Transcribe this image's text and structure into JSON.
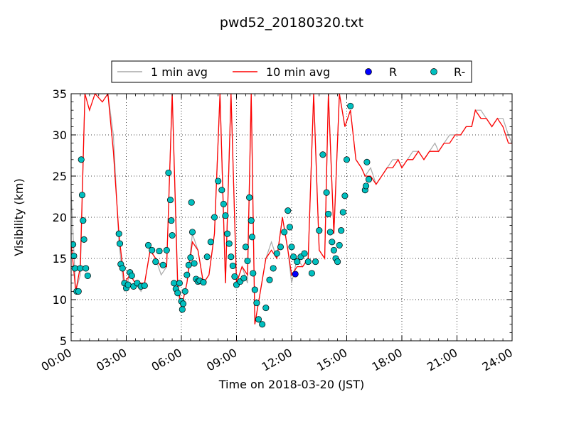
{
  "chart_data": {
    "type": "line",
    "title": "pwd52_20180320.txt",
    "xlabel": "Time on 2018-03-20 (JST)",
    "ylabel": "Visibility (km)",
    "xlim": [
      "00:00",
      "24:00"
    ],
    "ylim": [
      5,
      35
    ],
    "x_ticks": [
      "00:00",
      "03:00",
      "06:00",
      "09:00",
      "12:00",
      "15:00",
      "18:00",
      "21:00",
      "24:00"
    ],
    "y_ticks": [
      "5",
      "10",
      "15",
      "20",
      "25",
      "30",
      "35"
    ],
    "grid": true,
    "legend_position": "top-center",
    "colors": {
      "one_min": "#a9a9a9",
      "ten_min": "#ff0000",
      "R": "#0000ff",
      "R_minus": "#00bfbf"
    },
    "series": [
      {
        "name": "1 min avg",
        "style": "line",
        "color": "#a9a9a9",
        "x": [
          0.0,
          0.25,
          0.5,
          0.75,
          1.0,
          1.3,
          1.7,
          2.0,
          2.3,
          2.6,
          2.9,
          3.2,
          3.5,
          3.8,
          4.0,
          4.3,
          4.6,
          4.9,
          5.2,
          5.5,
          5.8,
          6.0,
          6.3,
          6.6,
          6.9,
          7.2,
          7.5,
          7.8,
          8.1,
          8.4,
          8.7,
          9.0,
          9.3,
          9.6,
          9.8,
          10.0,
          10.3,
          10.6,
          10.9,
          11.2,
          11.5,
          11.8,
          12.0,
          12.3,
          12.6,
          12.9,
          13.2,
          13.5,
          13.8,
          14.0,
          14.3,
          14.6,
          14.9,
          15.2,
          15.5,
          15.8,
          16.0,
          16.3,
          16.6,
          16.9,
          17.2,
          17.5,
          17.8,
          18.0,
          18.3,
          18.6,
          18.9,
          19.2,
          19.5,
          19.8,
          20.0,
          20.3,
          20.6,
          20.9,
          21.2,
          21.5,
          21.8,
          22.0,
          22.3,
          22.6,
          22.9,
          23.2,
          23.5,
          23.8,
          24.0
        ],
        "y": [
          23,
          11,
          13,
          35,
          35,
          35,
          35,
          35,
          30,
          17,
          11,
          13,
          12,
          11,
          12,
          16,
          15,
          13,
          14,
          35,
          11,
          9,
          12,
          18,
          16,
          12,
          13,
          18,
          35,
          12,
          35,
          12,
          14,
          12,
          35,
          7,
          11,
          15,
          17,
          15,
          20,
          16,
          12,
          15,
          14,
          15,
          35,
          16,
          15,
          35,
          18,
          35,
          31,
          33,
          27,
          26,
          25,
          26,
          24,
          25,
          26,
          27,
          27,
          26,
          27,
          28,
          28,
          27,
          28,
          29,
          28,
          29,
          30,
          30,
          30,
          31,
          31,
          33,
          33,
          32,
          31,
          32,
          32,
          30,
          29
        ]
      },
      {
        "name": "10 min avg",
        "style": "line",
        "color": "#ff0000",
        "x": [
          0.0,
          0.25,
          0.5,
          0.75,
          1.0,
          1.3,
          1.7,
          2.0,
          2.3,
          2.6,
          2.9,
          3.2,
          3.5,
          3.8,
          4.0,
          4.3,
          4.6,
          4.9,
          5.2,
          5.5,
          5.8,
          6.0,
          6.3,
          6.6,
          6.9,
          7.2,
          7.5,
          7.8,
          8.1,
          8.4,
          8.7,
          9.0,
          9.3,
          9.6,
          9.8,
          10.0,
          10.3,
          10.6,
          10.9,
          11.2,
          11.5,
          11.8,
          12.0,
          12.3,
          12.6,
          12.9,
          13.2,
          13.5,
          13.8,
          14.0,
          14.3,
          14.6,
          14.9,
          15.2,
          15.5,
          15.8,
          16.0,
          16.3,
          16.6,
          16.9,
          17.2,
          17.5,
          17.8,
          18.0,
          18.3,
          18.6,
          18.9,
          19.2,
          19.5,
          19.8,
          20.0,
          20.3,
          20.6,
          20.9,
          21.2,
          21.5,
          21.8,
          22.0,
          22.3,
          22.6,
          22.9,
          23.2,
          23.5,
          23.8,
          24.0
        ],
        "y": [
          17,
          11,
          14,
          35,
          33,
          35,
          34,
          35,
          28,
          18,
          12,
          13,
          12,
          12,
          12,
          16,
          15,
          14,
          14,
          35,
          12,
          9,
          12,
          17,
          16,
          12,
          13,
          18,
          35,
          12,
          35,
          12,
          14,
          13,
          35,
          7,
          11,
          15,
          16,
          15,
          20,
          16,
          13,
          14,
          14,
          15,
          35,
          16,
          15,
          35,
          18,
          35,
          31,
          33,
          27,
          26,
          25,
          25,
          24,
          25,
          26,
          26,
          27,
          26,
          27,
          27,
          28,
          27,
          28,
          28,
          28,
          29,
          29,
          30,
          30,
          31,
          31,
          33,
          32,
          32,
          31,
          32,
          31,
          29,
          29
        ]
      },
      {
        "name": "R",
        "style": "marker",
        "color": "#0000ff",
        "x": [
          12.2
        ],
        "y": [
          13.1
        ]
      },
      {
        "name": "R-",
        "style": "marker",
        "color": "#00bfbf",
        "x": [
          0.1,
          0.15,
          0.2,
          0.3,
          0.4,
          0.5,
          0.55,
          0.6,
          0.65,
          0.7,
          0.8,
          0.9,
          2.6,
          2.65,
          2.7,
          2.8,
          2.9,
          3.0,
          3.1,
          3.2,
          3.3,
          3.4,
          3.6,
          3.8,
          4.0,
          4.2,
          4.4,
          4.6,
          4.8,
          5.0,
          5.2,
          5.3,
          5.4,
          5.45,
          5.5,
          5.6,
          5.7,
          5.8,
          5.9,
          6.0,
          6.05,
          6.1,
          6.2,
          6.3,
          6.4,
          6.5,
          6.55,
          6.6,
          6.7,
          6.8,
          6.9,
          7.0,
          7.2,
          7.4,
          7.6,
          7.8,
          8.0,
          8.2,
          8.3,
          8.4,
          8.5,
          8.6,
          8.7,
          8.8,
          8.9,
          9.0,
          9.2,
          9.4,
          9.5,
          9.6,
          9.7,
          9.8,
          9.85,
          9.9,
          10.0,
          10.1,
          10.2,
          10.4,
          10.6,
          10.8,
          11.0,
          11.2,
          11.4,
          11.6,
          11.8,
          11.9,
          12.0,
          12.1,
          12.3,
          12.5,
          12.7,
          12.9,
          13.1,
          13.3,
          13.5,
          13.7,
          13.9,
          14.0,
          14.1,
          14.2,
          14.3,
          14.4,
          14.5,
          14.6,
          14.7,
          14.8,
          14.9,
          15.0,
          15.2,
          16.0,
          16.05,
          16.1,
          16.2
        ],
        "y": [
          16.7,
          15.3,
          13.8,
          11,
          11,
          13.8,
          27,
          22.7,
          19.6,
          17.3,
          13.8,
          12.9,
          18,
          16.8,
          14.3,
          13.8,
          12,
          11.4,
          11.8,
          13.3,
          12.9,
          11.6,
          12,
          11.6,
          11.7,
          16.6,
          16,
          14.6,
          15.9,
          14.2,
          16,
          25.4,
          22.1,
          19.6,
          17.8,
          12,
          11.3,
          10.8,
          12,
          9.8,
          8.8,
          9.5,
          11,
          13,
          14.2,
          15.1,
          21.8,
          18.2,
          14.4,
          12.5,
          12.2,
          12.3,
          12.1,
          15.2,
          17,
          20,
          24.4,
          23.3,
          21.6,
          20.2,
          18,
          16.8,
          15.2,
          14.1,
          12.8,
          11.8,
          12.2,
          12.6,
          16.4,
          14.7,
          22.4,
          19.6,
          17.6,
          13.2,
          11.2,
          9.6,
          7.6,
          7,
          9,
          12.4,
          13.8,
          15.6,
          16.4,
          18.2,
          20.8,
          18.8,
          16.4,
          15.2,
          14.6,
          15.2,
          15.6,
          14.6,
          13.2,
          14.6,
          18.4,
          27.6,
          23,
          20.4,
          18.2,
          17,
          16,
          15,
          14.6,
          16.6,
          18.4,
          20.6,
          22.6,
          27,
          33.5,
          23.3,
          23.8,
          26.7,
          24.6
        ]
      }
    ]
  }
}
